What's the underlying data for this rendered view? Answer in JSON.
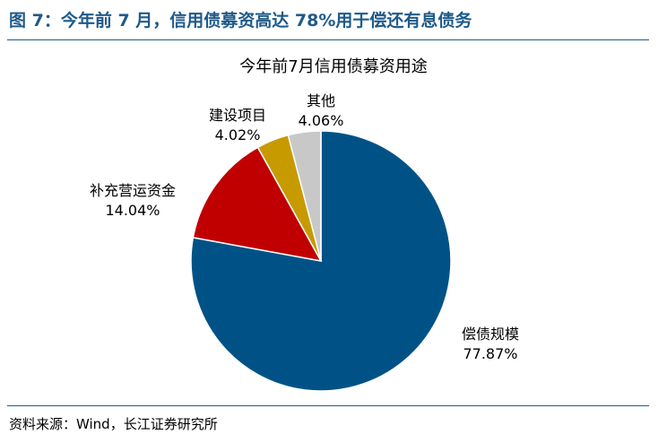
{
  "figure_title": "图 7：今年前 7 月，信用债募资高达 78%用于偿还有息债务",
  "source": "资料来源：Wind，长江证券研究所",
  "chart_data": {
    "type": "pie",
    "title": "今年前7月信用债募资用途",
    "slices": [
      {
        "name": "偿债规模",
        "value": 77.87,
        "label": "77.87%",
        "color": "#005286"
      },
      {
        "name": "补充营运资金",
        "value": 14.04,
        "label": "14.04%",
        "color": "#c00000"
      },
      {
        "name": "建设项目",
        "value": 4.02,
        "label": "4.02%",
        "color": "#c79a00"
      },
      {
        "name": "其他",
        "value": 4.06,
        "label": "4.06%",
        "color": "#c8c8c8"
      }
    ]
  }
}
